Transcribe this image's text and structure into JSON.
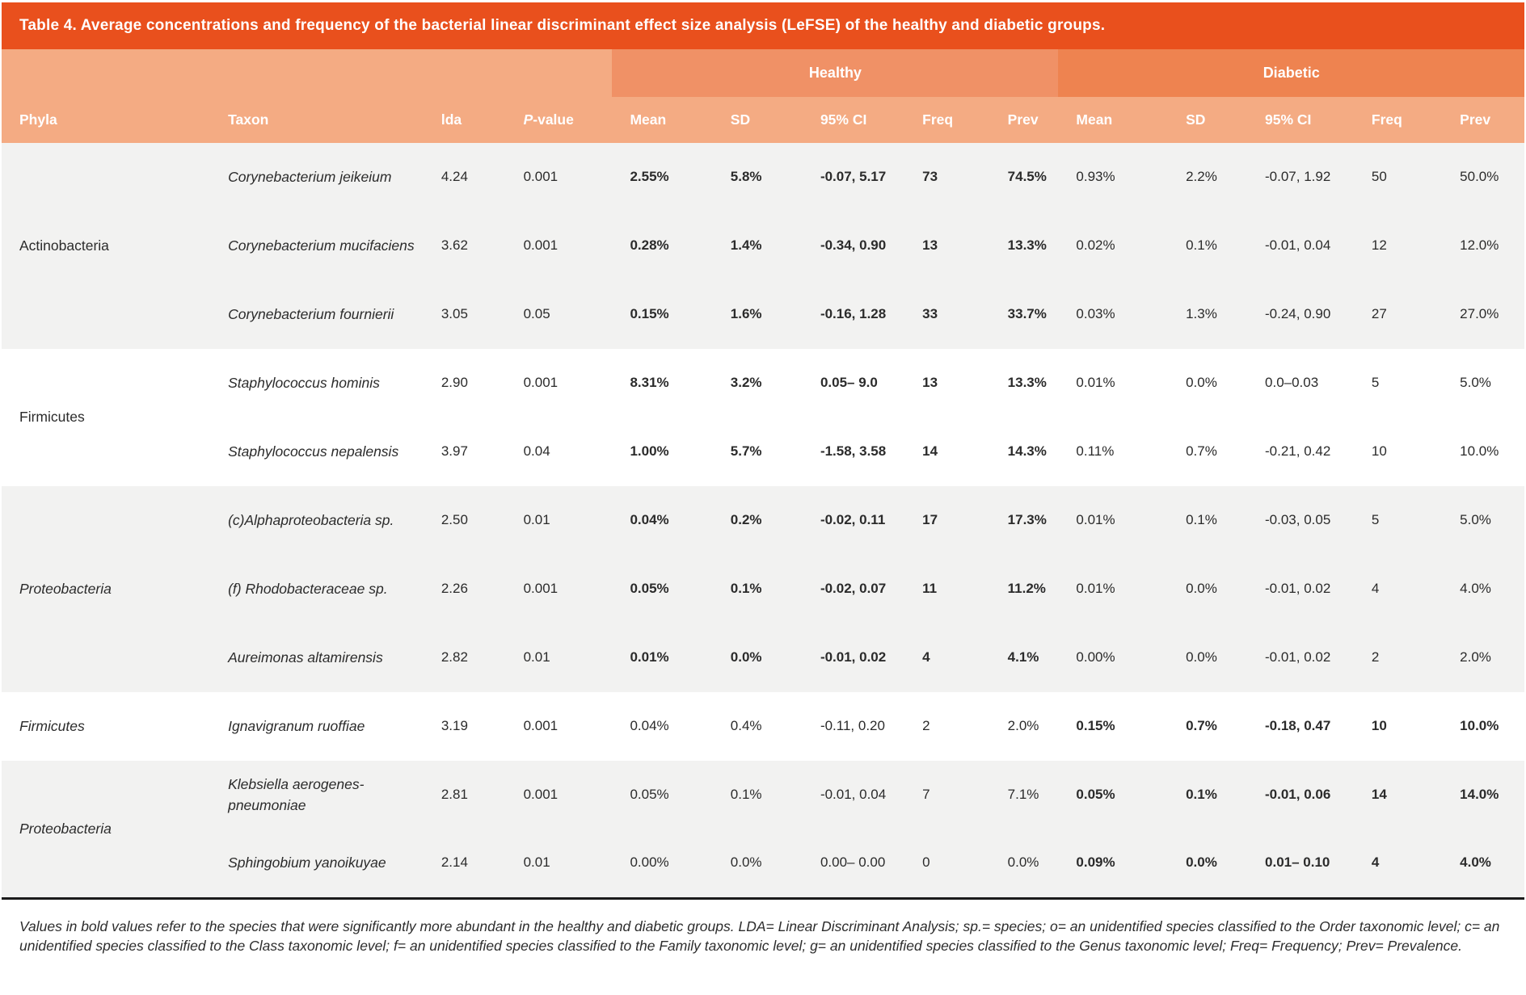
{
  "title": "Table 4. Average concentrations and frequency of the bacterial linear discriminant effect size analysis (LeFSE) of the healthy and diabetic groups.",
  "group_headers": {
    "healthy": "Healthy",
    "diabetic": "Diabetic"
  },
  "columns": {
    "phyla": "Phyla",
    "taxon": "Taxon",
    "lda": "lda",
    "p_italic": "P",
    "p_rest": "-value"
  },
  "subcols": {
    "mean": "Mean",
    "sd": "SD",
    "ci": "95% CI",
    "freq": "Freq",
    "prev": "Prev"
  },
  "colors": {
    "title_bar": "#E9501D",
    "healthy_header": "#F09166",
    "diabetic_header": "#EE8350",
    "subheader": "#F4AB83",
    "band_gray": "#F2F2F1",
    "band_white": "#FFFFFF",
    "text": "#2B2B2B",
    "bottom_rule": "#1B1B1B"
  },
  "groups": [
    {
      "phyla": "Actinobacteria",
      "phyla_italic": false,
      "shade": "gray",
      "rows": [
        {
          "taxon": "Corynebacterium jeikeium",
          "lda": "4.24",
          "p": "0.001",
          "healthy": {
            "mean": "2.55%",
            "sd": "5.8%",
            "ci": "-0.07, 5.17",
            "freq": "73",
            "prev": "74.5%"
          },
          "diabetic": {
            "mean": "0.93%",
            "sd": "2.2%",
            "ci": "-0.07, 1.92",
            "freq": "50",
            "prev": "50.0%"
          },
          "bold_side": "healthy"
        },
        {
          "taxon": "Corynebacterium mucifaciens",
          "lda": "3.62",
          "p": "0.001",
          "healthy": {
            "mean": "0.28%",
            "sd": "1.4%",
            "ci": "-0.34, 0.90",
            "freq": "13",
            "prev": "13.3%"
          },
          "diabetic": {
            "mean": "0.02%",
            "sd": "0.1%",
            "ci": "-0.01, 0.04",
            "freq": "12",
            "prev": "12.0%"
          },
          "bold_side": "healthy"
        },
        {
          "taxon": "Corynebacterium fournierii",
          "lda": "3.05",
          "p": "0.05",
          "healthy": {
            "mean": "0.15%",
            "sd": "1.6%",
            "ci": "-0.16, 1.28",
            "freq": "33",
            "prev": "33.7%"
          },
          "diabetic": {
            "mean": "0.03%",
            "sd": "1.3%",
            "ci": "-0.24, 0.90",
            "freq": "27",
            "prev": "27.0%"
          },
          "bold_side": "healthy"
        }
      ]
    },
    {
      "phyla": "Firmicutes",
      "phyla_italic": false,
      "shade": "white",
      "rows": [
        {
          "taxon": "Staphylococcus hominis",
          "lda": "2.90",
          "p": "0.001",
          "healthy": {
            "mean": "8.31%",
            "sd": "3.2%",
            "ci": "0.05– 9.0",
            "freq": "13",
            "prev": "13.3%"
          },
          "diabetic": {
            "mean": "0.01%",
            "sd": "0.0%",
            "ci": "0.0–0.03",
            "freq": "5",
            "prev": "5.0%"
          },
          "bold_side": "healthy"
        },
        {
          "taxon": "Staphylococcus nepalensis",
          "lda": "3.97",
          "p": "0.04",
          "healthy": {
            "mean": "1.00%",
            "sd": "5.7%",
            "ci": "-1.58, 3.58",
            "freq": "14",
            "prev": "14.3%"
          },
          "diabetic": {
            "mean": "0.11%",
            "sd": "0.7%",
            "ci": "-0.21, 0.42",
            "freq": "10",
            "prev": "10.0%"
          },
          "bold_side": "healthy"
        }
      ]
    },
    {
      "phyla": "Proteobacteria",
      "phyla_italic": true,
      "shade": "gray",
      "rows": [
        {
          "taxon": "(c)Alphaproteobacteria sp.",
          "lda": "2.50",
          "p": "0.01",
          "healthy": {
            "mean": "0.04%",
            "sd": "0.2%",
            "ci": "-0.02, 0.11",
            "freq": "17",
            "prev": "17.3%"
          },
          "diabetic": {
            "mean": "0.01%",
            "sd": "0.1%",
            "ci": "-0.03, 0.05",
            "freq": "5",
            "prev": "5.0%"
          },
          "bold_side": "healthy"
        },
        {
          "taxon": "(f) Rhodobacteraceae sp.",
          "lda": "2.26",
          "p": "0.001",
          "healthy": {
            "mean": "0.05%",
            "sd": "0.1%",
            "ci": "-0.02, 0.07",
            "freq": "11",
            "prev": "11.2%"
          },
          "diabetic": {
            "mean": "0.01%",
            "sd": "0.0%",
            "ci": "-0.01, 0.02",
            "freq": "4",
            "prev": "4.0%"
          },
          "bold_side": "healthy"
        },
        {
          "taxon": "Aureimonas altamirensis",
          "lda": "2.82",
          "p": "0.01",
          "healthy": {
            "mean": "0.01%",
            "sd": "0.0%",
            "ci": "-0.01, 0.02",
            "freq": "4",
            "prev": "4.1%"
          },
          "diabetic": {
            "mean": "0.00%",
            "sd": "0.0%",
            "ci": "-0.01, 0.02",
            "freq": "2",
            "prev": "2.0%"
          },
          "bold_side": "healthy"
        }
      ]
    },
    {
      "phyla": "Firmicutes",
      "phyla_italic": true,
      "shade": "white",
      "rows": [
        {
          "taxon": "Ignavigranum ruoffiae",
          "lda": "3.19",
          "p": "0.001",
          "healthy": {
            "mean": "0.04%",
            "sd": "0.4%",
            "ci": "-0.11, 0.20",
            "freq": "2",
            "prev": "2.0%"
          },
          "diabetic": {
            "mean": "0.15%",
            "sd": "0.7%",
            "ci": "-0.18, 0.47",
            "freq": "10",
            "prev": "10.0%"
          },
          "bold_side": "diabetic"
        }
      ]
    },
    {
      "phyla": "Proteobacteria",
      "phyla_italic": true,
      "shade": "gray",
      "rows": [
        {
          "taxon": "Klebsiella aerogenes-pneumoniae",
          "lda": "2.81",
          "p": "0.001",
          "healthy": {
            "mean": "0.05%",
            "sd": "0.1%",
            "ci": "-0.01, 0.04",
            "freq": "7",
            "prev": "7.1%"
          },
          "diabetic": {
            "mean": "0.05%",
            "sd": "0.1%",
            "ci": "-0.01, 0.06",
            "freq": "14",
            "prev": "14.0%"
          },
          "bold_side": "diabetic"
        },
        {
          "taxon": "Sphingobium yanoikuyae",
          "lda": "2.14",
          "p": "0.01",
          "healthy": {
            "mean": "0.00%",
            "sd": "0.0%",
            "ci": "0.00– 0.00",
            "freq": "0",
            "prev": "0.0%"
          },
          "diabetic": {
            "mean": "0.09%",
            "sd": "0.0%",
            "ci": "0.01– 0.10",
            "freq": "4",
            "prev": "4.0%"
          },
          "bold_side": "diabetic"
        }
      ]
    }
  ],
  "footnote": "Values in bold values refer to the species that were significantly more abundant in the healthy and diabetic groups. LDA= Linear Discriminant Analysis; sp.= species; o= an unidentified species classified to the Order taxonomic level; c= an unidentified species classified to the Class taxonomic level; f= an unidentified species classified to the Family taxonomic level; g= an unidentified species classified to the Genus taxonomic level; Freq= Frequency; Prev= Prevalence."
}
